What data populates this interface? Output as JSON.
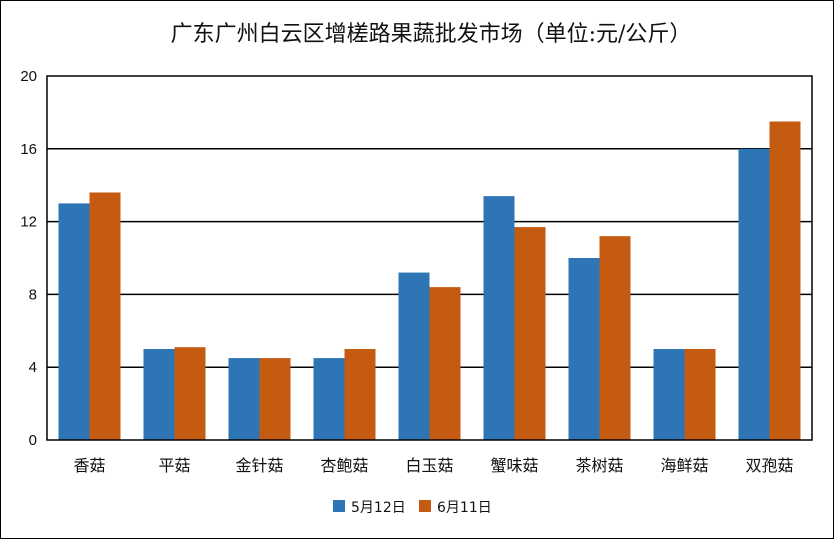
{
  "chart_data": {
    "type": "bar",
    "title": "广东广州白云区增槎路果蔬批发市场（单位:元/公斤）",
    "xlabel": "",
    "ylabel": "",
    "ylim": [
      0,
      20
    ],
    "yticks": [
      "0",
      "4",
      "8",
      "12",
      "16",
      "20"
    ],
    "grid": true,
    "legend_position": "bottom",
    "categories": [
      "香菇",
      "平菇",
      "金针菇",
      "杏鲍菇",
      "白玉菇",
      "蟹味菇",
      "茶树菇",
      "海鲜菇",
      "双孢菇"
    ],
    "series": [
      {
        "name": "5月12日",
        "color": "#2E75B6",
        "values": [
          13.0,
          5.0,
          4.5,
          4.5,
          9.2,
          13.4,
          10.0,
          5.0,
          16.0
        ]
      },
      {
        "name": "6月11日",
        "color": "#C55A11",
        "values": [
          13.6,
          5.1,
          4.5,
          5.0,
          8.4,
          11.7,
          11.2,
          5.0,
          17.5
        ]
      }
    ]
  }
}
